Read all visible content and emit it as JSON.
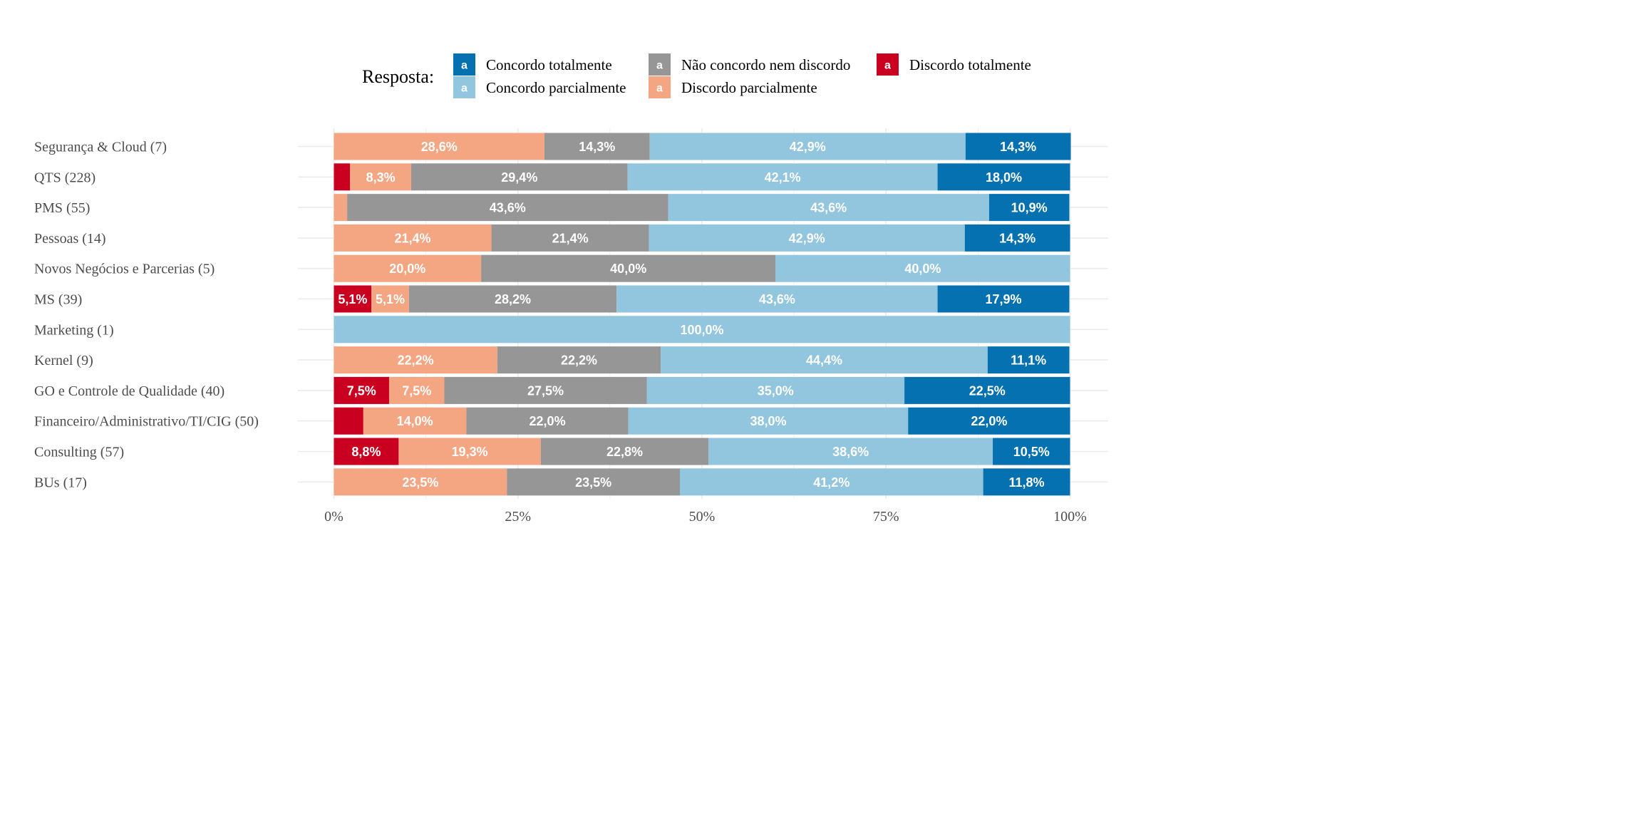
{
  "chart_data": {
    "type": "bar",
    "orientation": "horizontal",
    "stacked": true,
    "percent": true,
    "legend": {
      "title": "Resposta:",
      "placement": "top",
      "entries": [
        {
          "label": "Concordo totalmente",
          "color": "#0571B0"
        },
        {
          "label": "Não concordo nem discordo",
          "color": "#969696"
        },
        {
          "label": "Discordo totalmente",
          "color": "#CA0020"
        },
        {
          "label": "Concordo parcialmente",
          "color": "#92C5DE"
        },
        {
          "label": "Discordo parcialmente",
          "color": "#F4A582"
        }
      ]
    },
    "xlim": [
      0,
      100
    ],
    "x_ticks": [
      "0%",
      "25%",
      "50%",
      "75%",
      "100%"
    ],
    "grid": true,
    "categories": [
      "Segurança & Cloud (7)",
      "QTS (228)",
      "PMS (55)",
      "Pessoas (14)",
      "Novos Negócios e Parcerias (5)",
      "MS (39)",
      "Marketing (1)",
      "Kernel (9)",
      "GO e Controle de Qualidade (40)",
      "Financeiro/Administrativo/TI/CIG (50)",
      "Consulting (57)",
      "BUs (17)"
    ],
    "series": [
      {
        "name": "Discordo totalmente",
        "color": "#CA0020",
        "values": [
          0,
          2.2,
          0,
          0,
          0,
          5.1,
          0,
          0,
          7.5,
          4.0,
          8.8,
          0
        ],
        "labels": [
          "",
          "",
          "",
          "",
          "",
          "5,1%",
          "",
          "",
          "7,5%",
          "",
          "8,8%",
          ""
        ]
      },
      {
        "name": "Discordo parcialmente",
        "color": "#F4A582",
        "values": [
          28.6,
          8.3,
          1.8,
          21.4,
          20.0,
          5.1,
          0,
          22.2,
          7.5,
          14.0,
          19.3,
          23.5
        ],
        "labels": [
          "28,6%",
          "8,3%",
          "",
          "21,4%",
          "20,0%",
          "5,1%",
          "",
          "22,2%",
          "7,5%",
          "14,0%",
          "19,3%",
          "23,5%"
        ]
      },
      {
        "name": "Não concordo nem discordo",
        "color": "#969696",
        "values": [
          14.3,
          29.4,
          43.6,
          21.4,
          40.0,
          28.2,
          0,
          22.2,
          27.5,
          22.0,
          22.8,
          23.5
        ],
        "labels": [
          "14,3%",
          "29,4%",
          "43,6%",
          "21,4%",
          "40,0%",
          "28,2%",
          "",
          "22,2%",
          "27,5%",
          "22,0%",
          "22,8%",
          "23,5%"
        ]
      },
      {
        "name": "Concordo parcialmente",
        "color": "#92C5DE",
        "values": [
          42.9,
          42.1,
          43.6,
          42.9,
          40.0,
          43.6,
          100.0,
          44.4,
          35.0,
          38.0,
          38.6,
          41.2
        ],
        "labels": [
          "42,9%",
          "42,1%",
          "43,6%",
          "42,9%",
          "40,0%",
          "43,6%",
          "100,0%",
          "44,4%",
          "35,0%",
          "38,0%",
          "38,6%",
          "41,2%"
        ]
      },
      {
        "name": "Concordo totalmente",
        "color": "#0571B0",
        "values": [
          14.3,
          18.0,
          10.9,
          14.3,
          0,
          17.9,
          0,
          11.1,
          22.5,
          22.0,
          10.5,
          11.8
        ],
        "labels": [
          "14,3%",
          "18,0%",
          "10,9%",
          "14,3%",
          "",
          "17,9%",
          "",
          "11,1%",
          "22,5%",
          "22,0%",
          "10,5%",
          "11,8%"
        ]
      }
    ]
  }
}
